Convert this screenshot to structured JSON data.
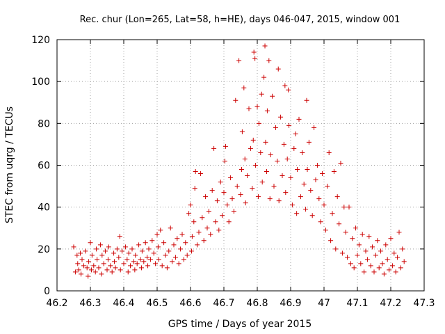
{
  "chart_data": {
    "type": "scatter",
    "title": "Rec. chur (Lon=265, Lat=58, h=HE), days 046-047, 2015, window 001",
    "xlabel": "GPS time / Days of year 2015",
    "ylabel": "STEC from uqrg / TECUs",
    "xlim": [
      46.2,
      47.3
    ],
    "ylim": [
      0,
      120
    ],
    "xticks": [
      "46.2",
      "46.3",
      "46.4",
      "46.5",
      "46.6",
      "46.7",
      "46.8",
      "46.9",
      "47",
      "47.1",
      "47.2",
      "47.3"
    ],
    "yticks": [
      "0",
      "20",
      "40",
      "60",
      "80",
      "100",
      "120"
    ],
    "grid": true,
    "marker": "+",
    "color": "#cc0000",
    "points": [
      [
        46.25,
        21
      ],
      [
        46.255,
        9
      ],
      [
        46.26,
        17
      ],
      [
        46.262,
        13
      ],
      [
        46.265,
        10
      ],
      [
        46.27,
        18
      ],
      [
        46.272,
        8
      ],
      [
        46.275,
        15
      ],
      [
        46.28,
        12
      ],
      [
        46.285,
        19
      ],
      [
        46.29,
        11
      ],
      [
        46.293,
        7
      ],
      [
        46.295,
        14
      ],
      [
        46.3,
        23
      ],
      [
        46.303,
        10
      ],
      [
        46.305,
        17
      ],
      [
        46.31,
        12
      ],
      [
        46.315,
        9
      ],
      [
        46.318,
        20
      ],
      [
        46.32,
        15
      ],
      [
        46.325,
        11
      ],
      [
        46.33,
        22
      ],
      [
        46.333,
        8
      ],
      [
        46.335,
        17
      ],
      [
        46.34,
        13
      ],
      [
        46.345,
        19
      ],
      [
        46.35,
        10
      ],
      [
        46.353,
        15
      ],
      [
        46.355,
        21
      ],
      [
        46.36,
        12
      ],
      [
        46.365,
        9
      ],
      [
        46.37,
        18
      ],
      [
        46.372,
        14
      ],
      [
        46.375,
        11
      ],
      [
        46.38,
        20
      ],
      [
        46.385,
        16
      ],
      [
        46.388,
        26
      ],
      [
        46.39,
        10
      ],
      [
        46.395,
        19
      ],
      [
        46.4,
        13
      ],
      [
        46.405,
        21
      ],
      [
        46.41,
        15
      ],
      [
        46.413,
        9
      ],
      [
        46.415,
        18
      ],
      [
        46.42,
        12
      ],
      [
        46.425,
        20
      ],
      [
        46.43,
        14
      ],
      [
        46.433,
        10
      ],
      [
        46.435,
        17
      ],
      [
        46.44,
        13
      ],
      [
        46.445,
        22
      ],
      [
        46.45,
        15
      ],
      [
        46.453,
        11
      ],
      [
        46.455,
        19
      ],
      [
        46.46,
        14
      ],
      [
        46.465,
        23
      ],
      [
        46.47,
        16
      ],
      [
        46.472,
        12
      ],
      [
        46.475,
        20
      ],
      [
        46.48,
        15
      ],
      [
        46.485,
        24
      ],
      [
        46.49,
        18
      ],
      [
        46.495,
        13
      ],
      [
        46.5,
        27
      ],
      [
        46.503,
        21
      ],
      [
        46.505,
        15
      ],
      [
        46.51,
        29
      ],
      [
        46.515,
        12
      ],
      [
        46.52,
        23
      ],
      [
        46.525,
        17
      ],
      [
        46.53,
        11
      ],
      [
        46.535,
        19
      ],
      [
        46.54,
        30
      ],
      [
        46.545,
        14
      ],
      [
        46.55,
        22
      ],
      [
        46.555,
        16
      ],
      [
        46.56,
        25
      ],
      [
        46.565,
        13
      ],
      [
        46.57,
        20
      ],
      [
        46.575,
        27
      ],
      [
        46.58,
        15
      ],
      [
        46.585,
        23
      ],
      [
        46.59,
        17
      ],
      [
        46.595,
        37
      ],
      [
        46.6,
        41
      ],
      [
        46.603,
        19
      ],
      [
        46.605,
        26
      ],
      [
        46.61,
        33
      ],
      [
        46.613,
        49
      ],
      [
        46.615,
        57
      ],
      [
        46.62,
        22
      ],
      [
        46.625,
        28
      ],
      [
        46.63,
        56
      ],
      [
        46.635,
        35
      ],
      [
        46.64,
        24
      ],
      [
        46.645,
        45
      ],
      [
        46.65,
        30
      ],
      [
        46.655,
        38
      ],
      [
        46.66,
        27
      ],
      [
        46.665,
        48
      ],
      [
        46.67,
        68
      ],
      [
        46.675,
        33
      ],
      [
        46.68,
        43
      ],
      [
        46.685,
        29
      ],
      [
        46.69,
        52
      ],
      [
        46.695,
        36
      ],
      [
        46.7,
        47
      ],
      [
        46.703,
        62
      ],
      [
        46.705,
        69
      ],
      [
        46.71,
        41
      ],
      [
        46.715,
        33
      ],
      [
        46.72,
        54
      ],
      [
        46.725,
        44
      ],
      [
        46.73,
        38
      ],
      [
        46.735,
        91
      ],
      [
        46.74,
        50
      ],
      [
        46.745,
        110
      ],
      [
        46.75,
        46
      ],
      [
        46.753,
        58
      ],
      [
        46.755,
        76
      ],
      [
        46.76,
        97
      ],
      [
        46.763,
        63
      ],
      [
        46.765,
        42
      ],
      [
        46.77,
        55
      ],
      [
        46.775,
        87
      ],
      [
        46.78,
        68
      ],
      [
        46.785,
        49
      ],
      [
        46.788,
        72
      ],
      [
        46.79,
        114
      ],
      [
        46.793,
        111
      ],
      [
        46.795,
        60
      ],
      [
        46.8,
        88
      ],
      [
        46.803,
        45
      ],
      [
        46.805,
        80
      ],
      [
        46.81,
        66
      ],
      [
        46.813,
        94
      ],
      [
        46.815,
        52
      ],
      [
        46.82,
        102
      ],
      [
        46.823,
        117
      ],
      [
        46.825,
        71
      ],
      [
        46.828,
        57
      ],
      [
        46.83,
        86
      ],
      [
        46.835,
        110
      ],
      [
        46.838,
        44
      ],
      [
        46.84,
        65
      ],
      [
        46.845,
        93
      ],
      [
        46.85,
        50
      ],
      [
        46.855,
        78
      ],
      [
        46.86,
        62
      ],
      [
        46.863,
        106
      ],
      [
        46.865,
        43
      ],
      [
        46.87,
        83
      ],
      [
        46.875,
        55
      ],
      [
        46.88,
        70
      ],
      [
        46.883,
        98
      ],
      [
        46.885,
        47
      ],
      [
        46.89,
        63
      ],
      [
        46.893,
        96
      ],
      [
        46.895,
        79
      ],
      [
        46.9,
        54
      ],
      [
        46.905,
        41
      ],
      [
        46.91,
        68
      ],
      [
        46.915,
        75
      ],
      [
        46.918,
        37
      ],
      [
        46.92,
        58
      ],
      [
        46.925,
        82
      ],
      [
        46.93,
        45
      ],
      [
        46.935,
        66
      ],
      [
        46.94,
        51
      ],
      [
        46.945,
        39
      ],
      [
        46.948,
        91
      ],
      [
        46.95,
        58
      ],
      [
        46.955,
        71
      ],
      [
        46.96,
        48
      ],
      [
        46.965,
        36
      ],
      [
        46.97,
        78
      ],
      [
        46.975,
        53
      ],
      [
        46.98,
        60
      ],
      [
        46.985,
        44
      ],
      [
        46.99,
        33
      ],
      [
        46.995,
        56
      ],
      [
        47.0,
        41
      ],
      [
        47.005,
        29
      ],
      [
        47.01,
        50
      ],
      [
        47.015,
        66
      ],
      [
        47.02,
        24
      ],
      [
        47.025,
        37
      ],
      [
        47.03,
        57
      ],
      [
        47.035,
        20
      ],
      [
        47.04,
        45
      ],
      [
        47.045,
        32
      ],
      [
        47.05,
        61
      ],
      [
        47.055,
        18
      ],
      [
        47.06,
        40
      ],
      [
        47.065,
        28
      ],
      [
        47.07,
        16
      ],
      [
        47.075,
        40
      ],
      [
        47.08,
        13
      ],
      [
        47.085,
        25
      ],
      [
        47.09,
        11
      ],
      [
        47.095,
        30
      ],
      [
        47.1,
        17
      ],
      [
        47.105,
        22
      ],
      [
        47.11,
        13
      ],
      [
        47.115,
        27
      ],
      [
        47.12,
        9
      ],
      [
        47.125,
        19
      ],
      [
        47.13,
        15
      ],
      [
        47.135,
        26
      ],
      [
        47.14,
        12
      ],
      [
        47.145,
        21
      ],
      [
        47.15,
        9
      ],
      [
        47.155,
        17
      ],
      [
        47.16,
        24
      ],
      [
        47.165,
        11
      ],
      [
        47.17,
        19
      ],
      [
        47.175,
        13
      ],
      [
        47.18,
        8
      ],
      [
        47.185,
        22
      ],
      [
        47.19,
        15
      ],
      [
        47.195,
        10
      ],
      [
        47.2,
        25
      ],
      [
        47.205,
        12
      ],
      [
        47.21,
        18
      ],
      [
        47.215,
        9
      ],
      [
        47.22,
        16
      ],
      [
        47.225,
        28
      ],
      [
        47.23,
        11
      ],
      [
        47.235,
        20
      ],
      [
        47.24,
        14
      ]
    ]
  }
}
